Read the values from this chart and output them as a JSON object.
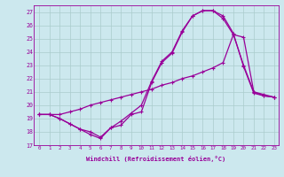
{
  "xlabel": "Windchill (Refroidissement éolien,°C)",
  "bg_color": "#cce8ee",
  "line_color": "#990099",
  "grid_color": "#aacccc",
  "xlim": [
    -0.5,
    23.4
  ],
  "ylim": [
    17,
    27.5
  ],
  "xtick_labels": [
    "0",
    "1",
    "2",
    "3",
    "4",
    "5",
    "6",
    "7",
    "8",
    "9",
    "10",
    "11",
    "12",
    "13",
    "14",
    "15",
    "16",
    "17",
    "18",
    "19",
    "20",
    "21",
    "22",
    "23"
  ],
  "ytick_values": [
    17,
    18,
    19,
    20,
    21,
    22,
    23,
    24,
    25,
    26,
    27
  ],
  "series1_x": [
    0,
    1,
    2,
    3,
    4,
    5,
    6,
    7,
    8,
    9,
    10,
    11,
    12,
    13,
    14,
    15,
    16,
    17,
    18,
    19,
    20,
    21,
    22,
    23
  ],
  "series1_y": [
    19.3,
    19.3,
    19.0,
    18.6,
    18.2,
    17.8,
    17.5,
    18.3,
    18.5,
    19.3,
    19.5,
    21.7,
    23.2,
    23.9,
    25.5,
    26.7,
    27.1,
    27.1,
    26.7,
    25.4,
    22.9,
    20.9,
    20.7,
    20.6
  ],
  "series2_x": [
    0,
    1,
    2,
    3,
    4,
    5,
    6,
    7,
    8,
    9,
    10,
    11,
    12,
    13,
    14,
    15,
    16,
    17,
    18,
    19,
    20,
    21,
    22,
    23
  ],
  "series2_y": [
    19.3,
    19.3,
    19.3,
    19.5,
    19.7,
    20.0,
    20.2,
    20.4,
    20.6,
    20.8,
    21.0,
    21.2,
    21.5,
    21.7,
    22.0,
    22.2,
    22.5,
    22.8,
    23.2,
    25.3,
    25.1,
    21.0,
    20.8,
    20.6
  ],
  "series3_x": [
    0,
    1,
    2,
    3,
    4,
    5,
    6,
    7,
    8,
    9,
    10,
    11,
    12,
    13,
    14,
    15,
    16,
    17,
    18,
    19,
    20,
    21,
    22,
    23
  ],
  "series3_y": [
    19.3,
    19.3,
    19.0,
    18.6,
    18.2,
    18.0,
    17.6,
    18.3,
    18.8,
    19.4,
    20.0,
    21.8,
    23.3,
    24.0,
    25.6,
    26.7,
    27.1,
    27.1,
    26.5,
    25.3,
    23.0,
    21.0,
    20.7,
    20.6
  ]
}
